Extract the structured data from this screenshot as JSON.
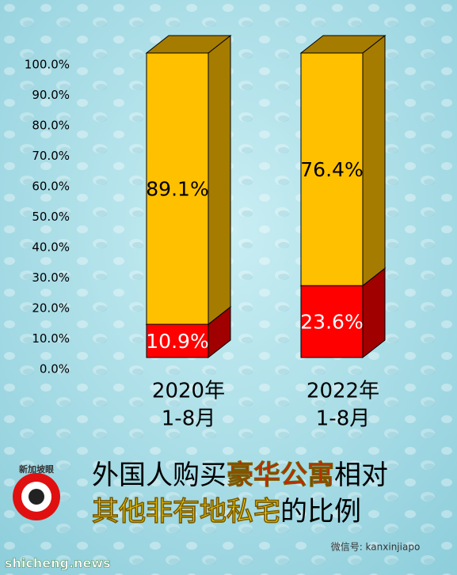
{
  "chart_data": {
    "type": "stacked_bar_3d",
    "categories": [
      [
        "2020年",
        "1-8月"
      ],
      [
        "2022年",
        "1-8月"
      ]
    ],
    "series": [
      {
        "color": "#ff0000",
        "side_color": "#a00000",
        "values": [
          10.9,
          23.6
        ],
        "value_labels": [
          "10.9%",
          "23.6%"
        ],
        "label_color": "#ffffff"
      },
      {
        "color": "#ffc000",
        "side_color": "#a67c00",
        "values": [
          89.1,
          76.4
        ],
        "value_labels": [
          "89.1%",
          "76.4%"
        ],
        "label_color": "#000000"
      }
    ],
    "ylim": [
      0,
      100
    ],
    "yticks": [
      {
        "value": 0,
        "label": "0.0%"
      },
      {
        "value": 10,
        "label": "10.0%"
      },
      {
        "value": 20,
        "label": "20.0%"
      },
      {
        "value": 30,
        "label": "30.0%"
      },
      {
        "value": 40,
        "label": "40.0%"
      },
      {
        "value": 50,
        "label": "50.0%"
      },
      {
        "value": 60,
        "label": "60.0%"
      },
      {
        "value": 70,
        "label": "70.0%"
      },
      {
        "value": 80,
        "label": "80.0%"
      },
      {
        "value": 90,
        "label": "90.0%"
      },
      {
        "value": 100,
        "label": "100.0%"
      }
    ],
    "title_lines": [
      [
        {
          "text": "外国人购买",
          "color": "#000000"
        },
        {
          "text": "豪华公寓",
          "color": "#ff0000"
        },
        {
          "text": "相对",
          "color": "#000000"
        }
      ],
      [
        {
          "text": "其他非有地私宅",
          "color": "#ffd800"
        },
        {
          "text": "的比例",
          "color": "#000000"
        }
      ]
    ]
  },
  "logo": "新加坡眼",
  "wechat": "微信号: kanxinjiapo",
  "watermark": "shicheng.news"
}
